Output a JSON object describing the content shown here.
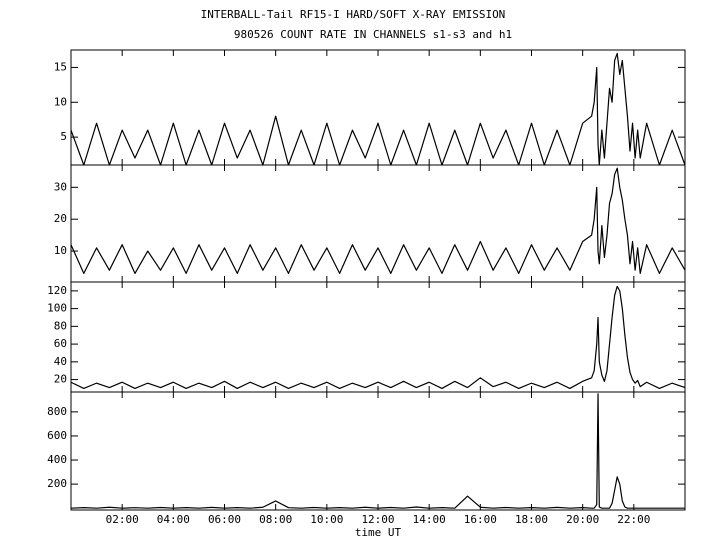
{
  "chart_data": [
    {
      "type": "line",
      "title": "INTERBALL-Tail RF15-I HARD/SOFT X-RAY EMISSION",
      "subtitle": "980526  COUNT RATE IN CHANNELS s1-s3 and h1",
      "color": "#000000",
      "x": [
        0,
        0.5,
        1,
        1.5,
        2,
        2.5,
        3,
        3.5,
        4,
        4.5,
        5,
        5.5,
        6,
        6.5,
        7,
        7.5,
        8,
        8.5,
        9,
        9.5,
        10,
        10.5,
        11,
        11.5,
        12,
        12.5,
        13,
        13.5,
        14,
        14.5,
        15,
        15.5,
        16,
        16.5,
        17,
        17.5,
        18,
        18.5,
        19,
        19.5,
        20,
        20.35,
        20.45,
        20.55,
        20.6,
        20.65,
        20.75,
        20.85,
        20.95,
        21.05,
        21.15,
        21.25,
        21.35,
        21.45,
        21.55,
        21.65,
        21.75,
        21.85,
        21.95,
        22.05,
        22.15,
        22.25,
        22.5,
        23,
        23.5,
        24
      ],
      "values": [
        6,
        1,
        7,
        1,
        6,
        2,
        6,
        1,
        7,
        1,
        6,
        1,
        7,
        2,
        6,
        1,
        8,
        1,
        6,
        1,
        7,
        1,
        6,
        2,
        7,
        1,
        6,
        1,
        7,
        1,
        6,
        1,
        7,
        2,
        6,
        1,
        7,
        1,
        6,
        1,
        7,
        8,
        10,
        15,
        4,
        1,
        6,
        2,
        7,
        12,
        10,
        16,
        17,
        14,
        16,
        12,
        8,
        3,
        7,
        2,
        6,
        2,
        7,
        1,
        6,
        1
      ],
      "xlim": [
        0,
        24
      ],
      "ylim": [
        1,
        17.5
      ],
      "yticks": [
        5,
        10,
        15
      ]
    },
    {
      "type": "line",
      "color": "#000000",
      "x": [
        0,
        0.5,
        1,
        1.5,
        2,
        2.5,
        3,
        3.5,
        4,
        4.5,
        5,
        5.5,
        6,
        6.5,
        7,
        7.5,
        8,
        8.5,
        9,
        9.5,
        10,
        10.5,
        11,
        11.5,
        12,
        12.5,
        13,
        13.5,
        14,
        14.5,
        15,
        15.5,
        16,
        16.5,
        17,
        17.5,
        18,
        18.5,
        19,
        19.5,
        20,
        20.35,
        20.45,
        20.55,
        20.6,
        20.65,
        20.75,
        20.85,
        20.95,
        21.05,
        21.15,
        21.25,
        21.35,
        21.45,
        21.55,
        21.65,
        21.75,
        21.85,
        21.95,
        22.05,
        22.15,
        22.25,
        22.5,
        23,
        23.5,
        24
      ],
      "values": [
        12,
        3,
        11,
        4,
        12,
        3,
        10,
        4,
        11,
        3,
        12,
        4,
        11,
        3,
        12,
        4,
        11,
        3,
        12,
        4,
        11,
        3,
        12,
        4,
        11,
        3,
        12,
        4,
        11,
        3,
        12,
        4,
        13,
        4,
        11,
        3,
        12,
        4,
        11,
        4,
        13,
        15,
        20,
        30,
        10,
        6,
        18,
        8,
        15,
        25,
        28,
        34,
        36,
        30,
        26,
        20,
        15,
        6,
        13,
        4,
        11,
        3,
        12,
        3,
        11,
        4
      ],
      "xlim": [
        0,
        24
      ],
      "ylim": [
        0.3,
        37
      ],
      "yticks": [
        10,
        20,
        30
      ]
    },
    {
      "type": "line",
      "color": "#000000",
      "x": [
        0,
        0.5,
        1,
        1.5,
        2,
        2.5,
        3,
        3.5,
        4,
        4.5,
        5,
        5.5,
        6,
        6.5,
        7,
        7.5,
        8,
        8.5,
        9,
        9.5,
        10,
        10.5,
        11,
        11.5,
        12,
        12.5,
        13,
        13.5,
        14,
        14.5,
        15,
        15.5,
        16,
        16.5,
        17,
        17.5,
        18,
        18.5,
        19,
        19.5,
        20,
        20.35,
        20.45,
        20.55,
        20.6,
        20.65,
        20.75,
        20.85,
        20.95,
        21.05,
        21.15,
        21.25,
        21.35,
        21.45,
        21.55,
        21.65,
        21.75,
        21.85,
        21.95,
        22.05,
        22.15,
        22.25,
        22.5,
        23,
        23.5,
        24
      ],
      "values": [
        17,
        10,
        16,
        11,
        17,
        10,
        16,
        11,
        17,
        10,
        16,
        11,
        18,
        10,
        17,
        11,
        17,
        10,
        16,
        11,
        17,
        10,
        16,
        11,
        17,
        11,
        18,
        11,
        17,
        10,
        18,
        11,
        22,
        12,
        17,
        10,
        16,
        11,
        17,
        10,
        18,
        22,
        30,
        60,
        90,
        40,
        25,
        18,
        30,
        60,
        90,
        115,
        125,
        120,
        100,
        70,
        45,
        28,
        20,
        16,
        19,
        12,
        17,
        10,
        16,
        11
      ],
      "xlim": [
        0,
        24
      ],
      "ylim": [
        6,
        130
      ],
      "yticks": [
        20,
        40,
        60,
        80,
        100,
        120
      ]
    },
    {
      "type": "line",
      "xlabel": "time UT",
      "color": "#000000",
      "x": [
        0,
        0.5,
        1,
        1.5,
        2,
        2.5,
        3,
        3.5,
        4,
        4.5,
        5,
        5.5,
        6,
        6.5,
        7,
        7.5,
        8,
        8.5,
        9,
        9.5,
        10,
        10.5,
        11,
        11.5,
        12,
        12.5,
        13,
        13.5,
        14,
        14.5,
        15,
        15.5,
        16,
        16.5,
        17,
        17.5,
        18,
        18.5,
        19,
        19.5,
        20,
        20.35,
        20.45,
        20.55,
        20.6,
        20.65,
        20.75,
        20.85,
        20.95,
        21.05,
        21.15,
        21.25,
        21.35,
        21.45,
        21.55,
        21.65,
        21.75,
        21.85,
        21.95,
        22.05,
        22.15,
        22.25,
        22.5,
        23,
        23.5,
        24
      ],
      "values": [
        0,
        5,
        0,
        8,
        0,
        4,
        0,
        6,
        0,
        5,
        0,
        7,
        0,
        5,
        0,
        8,
        60,
        4,
        0,
        6,
        0,
        5,
        0,
        8,
        0,
        6,
        0,
        10,
        0,
        5,
        0,
        100,
        8,
        0,
        6,
        0,
        5,
        0,
        7,
        0,
        5,
        0,
        0,
        30,
        950,
        10,
        0,
        0,
        0,
        0,
        40,
        150,
        260,
        200,
        60,
        10,
        0,
        0,
        0,
        0,
        0,
        0,
        0,
        0,
        0,
        0
      ],
      "xlim": [
        0,
        24
      ],
      "ylim": [
        -15,
        965
      ],
      "yticks": [
        200,
        400,
        600,
        800
      ],
      "xticks": [
        {
          "value": 2,
          "label": "02:00"
        },
        {
          "value": 4,
          "label": "04:00"
        },
        {
          "value": 6,
          "label": "06:00"
        },
        {
          "value": 8,
          "label": "08:00"
        },
        {
          "value": 10,
          "label": "10:00"
        },
        {
          "value": 12,
          "label": "12:00"
        },
        {
          "value": 14,
          "label": "14:00"
        },
        {
          "value": 16,
          "label": "16:00"
        },
        {
          "value": 18,
          "label": "18:00"
        },
        {
          "value": 20,
          "label": "20:00"
        },
        {
          "value": 22,
          "label": "22:00"
        }
      ]
    }
  ]
}
